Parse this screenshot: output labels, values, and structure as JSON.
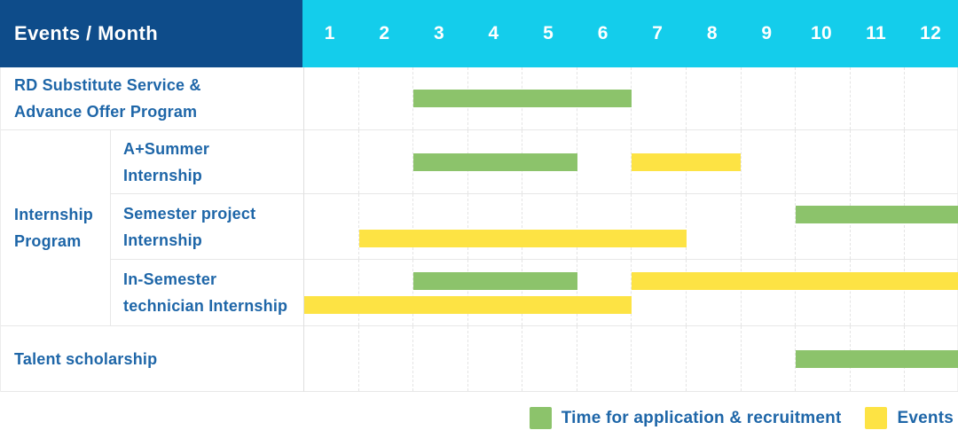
{
  "header": {
    "title": "Events / Month",
    "months": [
      "1",
      "2",
      "3",
      "4",
      "5",
      "6",
      "7",
      "8",
      "9",
      "10",
      "11",
      "12"
    ]
  },
  "colors": {
    "header_navy": "#0E4C8A",
    "header_cyan": "#14CDEB",
    "green": "#8CC36B",
    "yellow": "#FDE344",
    "label_blue": "#1E66A8"
  },
  "chart_data": {
    "type": "bar",
    "variant": "gantt-schedule",
    "xlabel": "Month",
    "x_range": [
      1,
      12
    ],
    "grid": "dashed-vertical-month-lines",
    "legend_position": "bottom-right",
    "legend": [
      {
        "key": "application",
        "label": "Time for application & recruitment",
        "color": "#8CC36B"
      },
      {
        "key": "events",
        "label": "Events",
        "color": "#FDE344"
      }
    ],
    "group_label": "Internship Program",
    "group_label_lines": [
      "Internship",
      "Program"
    ],
    "rows": [
      {
        "label": "RD Substitute Service & Advance Offer Program",
        "label_lines": [
          "RD Substitute Service &",
          "Advance Offer Program"
        ],
        "group": null,
        "lines": [
          [
            {
              "type": "application",
              "start": 3,
              "end": 6
            }
          ]
        ]
      },
      {
        "label": "A+Summer Internship",
        "label_lines": [
          "A+Summer",
          "Internship"
        ],
        "group": "Internship Program",
        "lines": [
          [
            {
              "type": "application",
              "start": 3,
              "end": 5
            },
            {
              "type": "events",
              "start": 7,
              "end": 8
            }
          ]
        ]
      },
      {
        "label": "Semester project Internship",
        "label_lines": [
          "Semester project",
          "Internship"
        ],
        "group": "Internship Program",
        "lines": [
          [
            {
              "type": "application",
              "start": 10,
              "end": 12
            }
          ],
          [
            {
              "type": "events",
              "start": 2,
              "end": 7
            }
          ]
        ]
      },
      {
        "label": "In-Semester technician Internship",
        "label_lines": [
          "In-Semester",
          "technician Internship"
        ],
        "group": "Internship Program",
        "lines": [
          [
            {
              "type": "application",
              "start": 3,
              "end": 5
            },
            {
              "type": "events",
              "start": 7,
              "end": 12
            }
          ],
          [
            {
              "type": "events",
              "start": 1,
              "end": 6
            }
          ]
        ]
      },
      {
        "label": "Talent scholarship",
        "label_lines": [
          "Talent scholarship"
        ],
        "group": null,
        "lines": [
          [
            {
              "type": "application",
              "start": 10,
              "end": 12
            }
          ]
        ]
      }
    ]
  }
}
